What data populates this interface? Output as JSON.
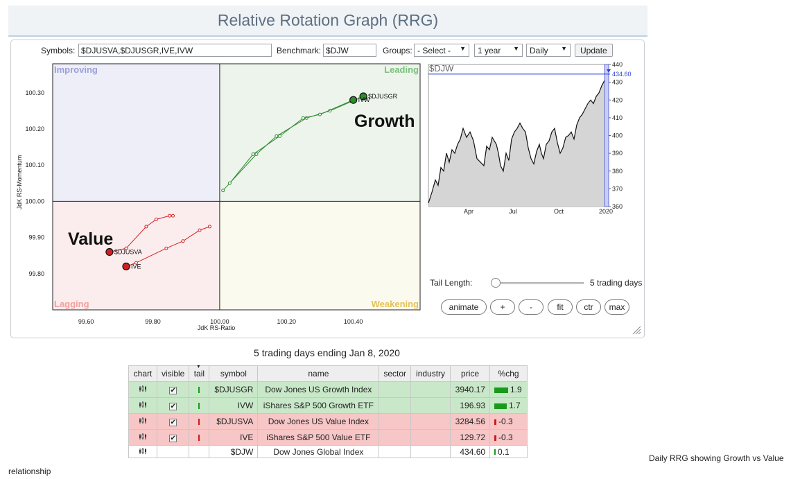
{
  "title": "Relative Rotation Graph (RRG)",
  "controls": {
    "symbols_label": "Symbols:",
    "symbols_value": "$DJUSVA,$DJUSGR,IVE,IVW",
    "benchmark_label": "Benchmark:",
    "benchmark_value": "$DJW",
    "groups_label": "Groups:",
    "groups_value": "- Select -",
    "period_value": "1 year",
    "frequency_value": "Daily",
    "update_label": "Update"
  },
  "quadrants": {
    "improving": "Improving",
    "leading": "Leading",
    "lagging": "Lagging",
    "weakening": "Weakening"
  },
  "annotations": {
    "growth": "Growth",
    "value": "Value"
  },
  "colors": {
    "improving_bg": "#eeeef8",
    "leading_bg": "#edf4ec",
    "lagging_bg": "#fbeced",
    "weakening_bg": "#fbfaee",
    "green": "#2e8b2e",
    "red": "#d22020"
  },
  "chart_data": [
    {
      "type": "scatter",
      "title": "",
      "xlabel": "JdK RS-Ratio",
      "ylabel": "JdK RS-Momentum",
      "xlim": [
        99.5,
        100.6
      ],
      "ylim": [
        99.7,
        100.38
      ],
      "x_ticks": [
        "99.60",
        "99.80",
        "100.00",
        "100.20",
        "100.40"
      ],
      "y_ticks": [
        "100.30",
        "100.20",
        "100.10",
        "100.00",
        "99.90",
        "99.80"
      ],
      "series": [
        {
          "name": "$DJUSGR",
          "color": "green",
          "x": [
            100.01,
            100.11,
            100.17,
            100.26,
            100.33,
            100.43
          ],
          "y": [
            100.03,
            100.13,
            100.18,
            100.23,
            100.25,
            100.29
          ]
        },
        {
          "name": "IVW",
          "color": "green",
          "x": [
            100.03,
            100.1,
            100.18,
            100.25,
            100.3,
            100.4
          ],
          "y": [
            100.05,
            100.13,
            100.18,
            100.23,
            100.24,
            100.28
          ]
        },
        {
          "name": "$DJUSVA",
          "color": "red",
          "x": [
            99.86,
            99.85,
            99.81,
            99.78,
            99.72,
            99.67
          ],
          "y": [
            99.96,
            99.96,
            99.95,
            99.93,
            99.87,
            99.86
          ]
        },
        {
          "name": "IVE",
          "color": "red",
          "x": [
            99.97,
            99.94,
            99.89,
            99.84,
            99.75,
            99.72
          ],
          "y": [
            99.93,
            99.92,
            99.89,
            99.87,
            99.83,
            99.82
          ]
        }
      ]
    },
    {
      "type": "area",
      "title": "$DJW",
      "last_value": "434.60",
      "ylim": [
        360,
        440
      ],
      "y_ticks": [
        "440",
        "430",
        "420",
        "410",
        "400",
        "390",
        "380",
        "370",
        "360"
      ],
      "x_ticks": [
        "Apr",
        "Jul",
        "Oct",
        "2020"
      ],
      "x": [
        0,
        5,
        10,
        14,
        18,
        22,
        26,
        30,
        34,
        38,
        42,
        46,
        50,
        55,
        60,
        65,
        70,
        75,
        80,
        84,
        88,
        92,
        95,
        98,
        101,
        104,
        108,
        112,
        116,
        120,
        124,
        128,
        132,
        136,
        140,
        144,
        148,
        152,
        156,
        160,
        163,
        166,
        170,
        174,
        178,
        182,
        186,
        190,
        194,
        198,
        202,
        206,
        210,
        214,
        218,
        222,
        226,
        230,
        234,
        238,
        242,
        246,
        250,
        254,
        257,
        260
      ],
      "values": [
        362,
        368,
        375,
        372,
        382,
        380,
        390,
        385,
        392,
        390,
        395,
        398,
        404,
        399,
        402,
        397,
        387,
        385,
        383,
        394,
        392,
        399,
        397,
        395,
        390,
        383,
        380,
        390,
        386,
        398,
        402,
        404,
        407,
        404,
        402,
        393,
        387,
        384,
        391,
        395,
        390,
        387,
        395,
        397,
        402,
        404,
        396,
        390,
        393,
        399,
        400,
        402,
        398,
        406,
        410,
        412,
        415,
        418,
        420,
        418,
        422,
        424,
        428,
        431,
        433,
        434.6
      ]
    }
  ],
  "tail": {
    "label": "Tail Length:",
    "value_text": "5 trading days",
    "level": 0.0
  },
  "buttons": {
    "animate": "animate",
    "plus": "+",
    "minus": "-",
    "fit": "fit",
    "ctr": "ctr",
    "max": "max"
  },
  "table_caption": "5 trading days ending Jan 8, 2020",
  "table": {
    "headers": [
      "chart",
      "visible",
      "tail",
      "symbol",
      "name",
      "sector",
      "industry",
      "price",
      "%chg"
    ],
    "rows": [
      {
        "symbol": "$DJUSGR",
        "name": "Dow Jones US Growth Index",
        "sector": "",
        "industry": "",
        "price": "3940.17",
        "chg": "1.9",
        "chg_num": 1.9,
        "row_color": "green",
        "visible": true
      },
      {
        "symbol": "IVW",
        "name": "iShares S&P 500 Growth ETF",
        "sector": "",
        "industry": "",
        "price": "196.93",
        "chg": "1.7",
        "chg_num": 1.7,
        "row_color": "green",
        "visible": true
      },
      {
        "symbol": "$DJUSVA",
        "name": "Dow Jones US Value Index",
        "sector": "",
        "industry": "",
        "price": "3284.56",
        "chg": "-0.3",
        "chg_num": -0.3,
        "row_color": "red",
        "visible": true
      },
      {
        "symbol": "IVE",
        "name": "iShares S&P 500 Value ETF",
        "sector": "",
        "industry": "",
        "price": "129.72",
        "chg": "-0.3",
        "chg_num": -0.3,
        "row_color": "red",
        "visible": true
      },
      {
        "symbol": "$DJW",
        "name": "Dow Jones Global Index",
        "sector": "",
        "industry": "",
        "price": "434.60",
        "chg": "0.1",
        "chg_num": 0.1,
        "row_color": "white",
        "visible": false
      }
    ]
  },
  "footer_line1": "Daily RRG showing Growth vs Value",
  "footer_line2": "relationship"
}
